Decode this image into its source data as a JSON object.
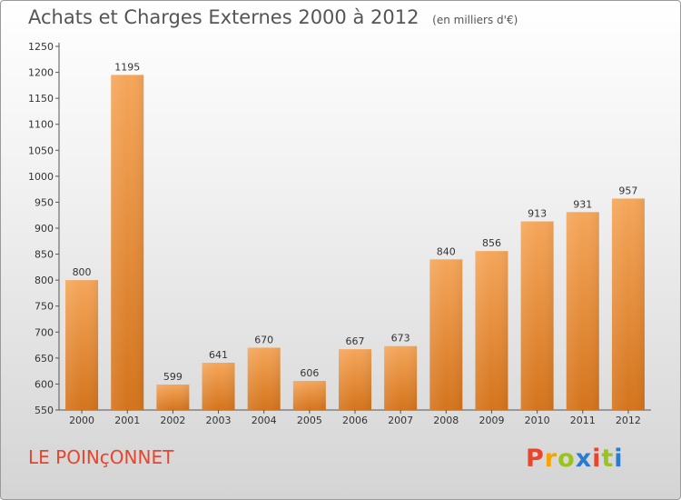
{
  "header": {
    "title": "Achats et Charges Externes 2000 à 2012",
    "unit": "(en milliers d'€)"
  },
  "footer": {
    "commune": "LE POINçONNET",
    "brand": "Proxiti",
    "brand_colors": [
      "#e8452c",
      "#f7a400",
      "#9ac31c",
      "#2a7bd1",
      "#e8452c",
      "#9ac31c",
      "#2a7bd1"
    ]
  },
  "colors": {
    "bar_top": "#f5a65a",
    "bar_bottom": "#d4741c",
    "title": "#555555",
    "commune": "#e8452c"
  },
  "chart_data": {
    "type": "bar",
    "title": "Achats et Charges Externes 2000 à 2012",
    "xlabel": "",
    "ylabel": "",
    "categories": [
      "2000",
      "2001",
      "2002",
      "2003",
      "2004",
      "2005",
      "2006",
      "2007",
      "2008",
      "2009",
      "2010",
      "2011",
      "2012"
    ],
    "values": [
      800,
      1195,
      599,
      641,
      670,
      606,
      667,
      673,
      840,
      856,
      913,
      931,
      957
    ],
    "ylim": [
      550,
      1250
    ],
    "yticks": [
      550,
      600,
      650,
      700,
      750,
      800,
      850,
      900,
      950,
      1000,
      1050,
      1100,
      1150,
      1200,
      1250
    ],
    "grid": false,
    "data_labels": true
  }
}
